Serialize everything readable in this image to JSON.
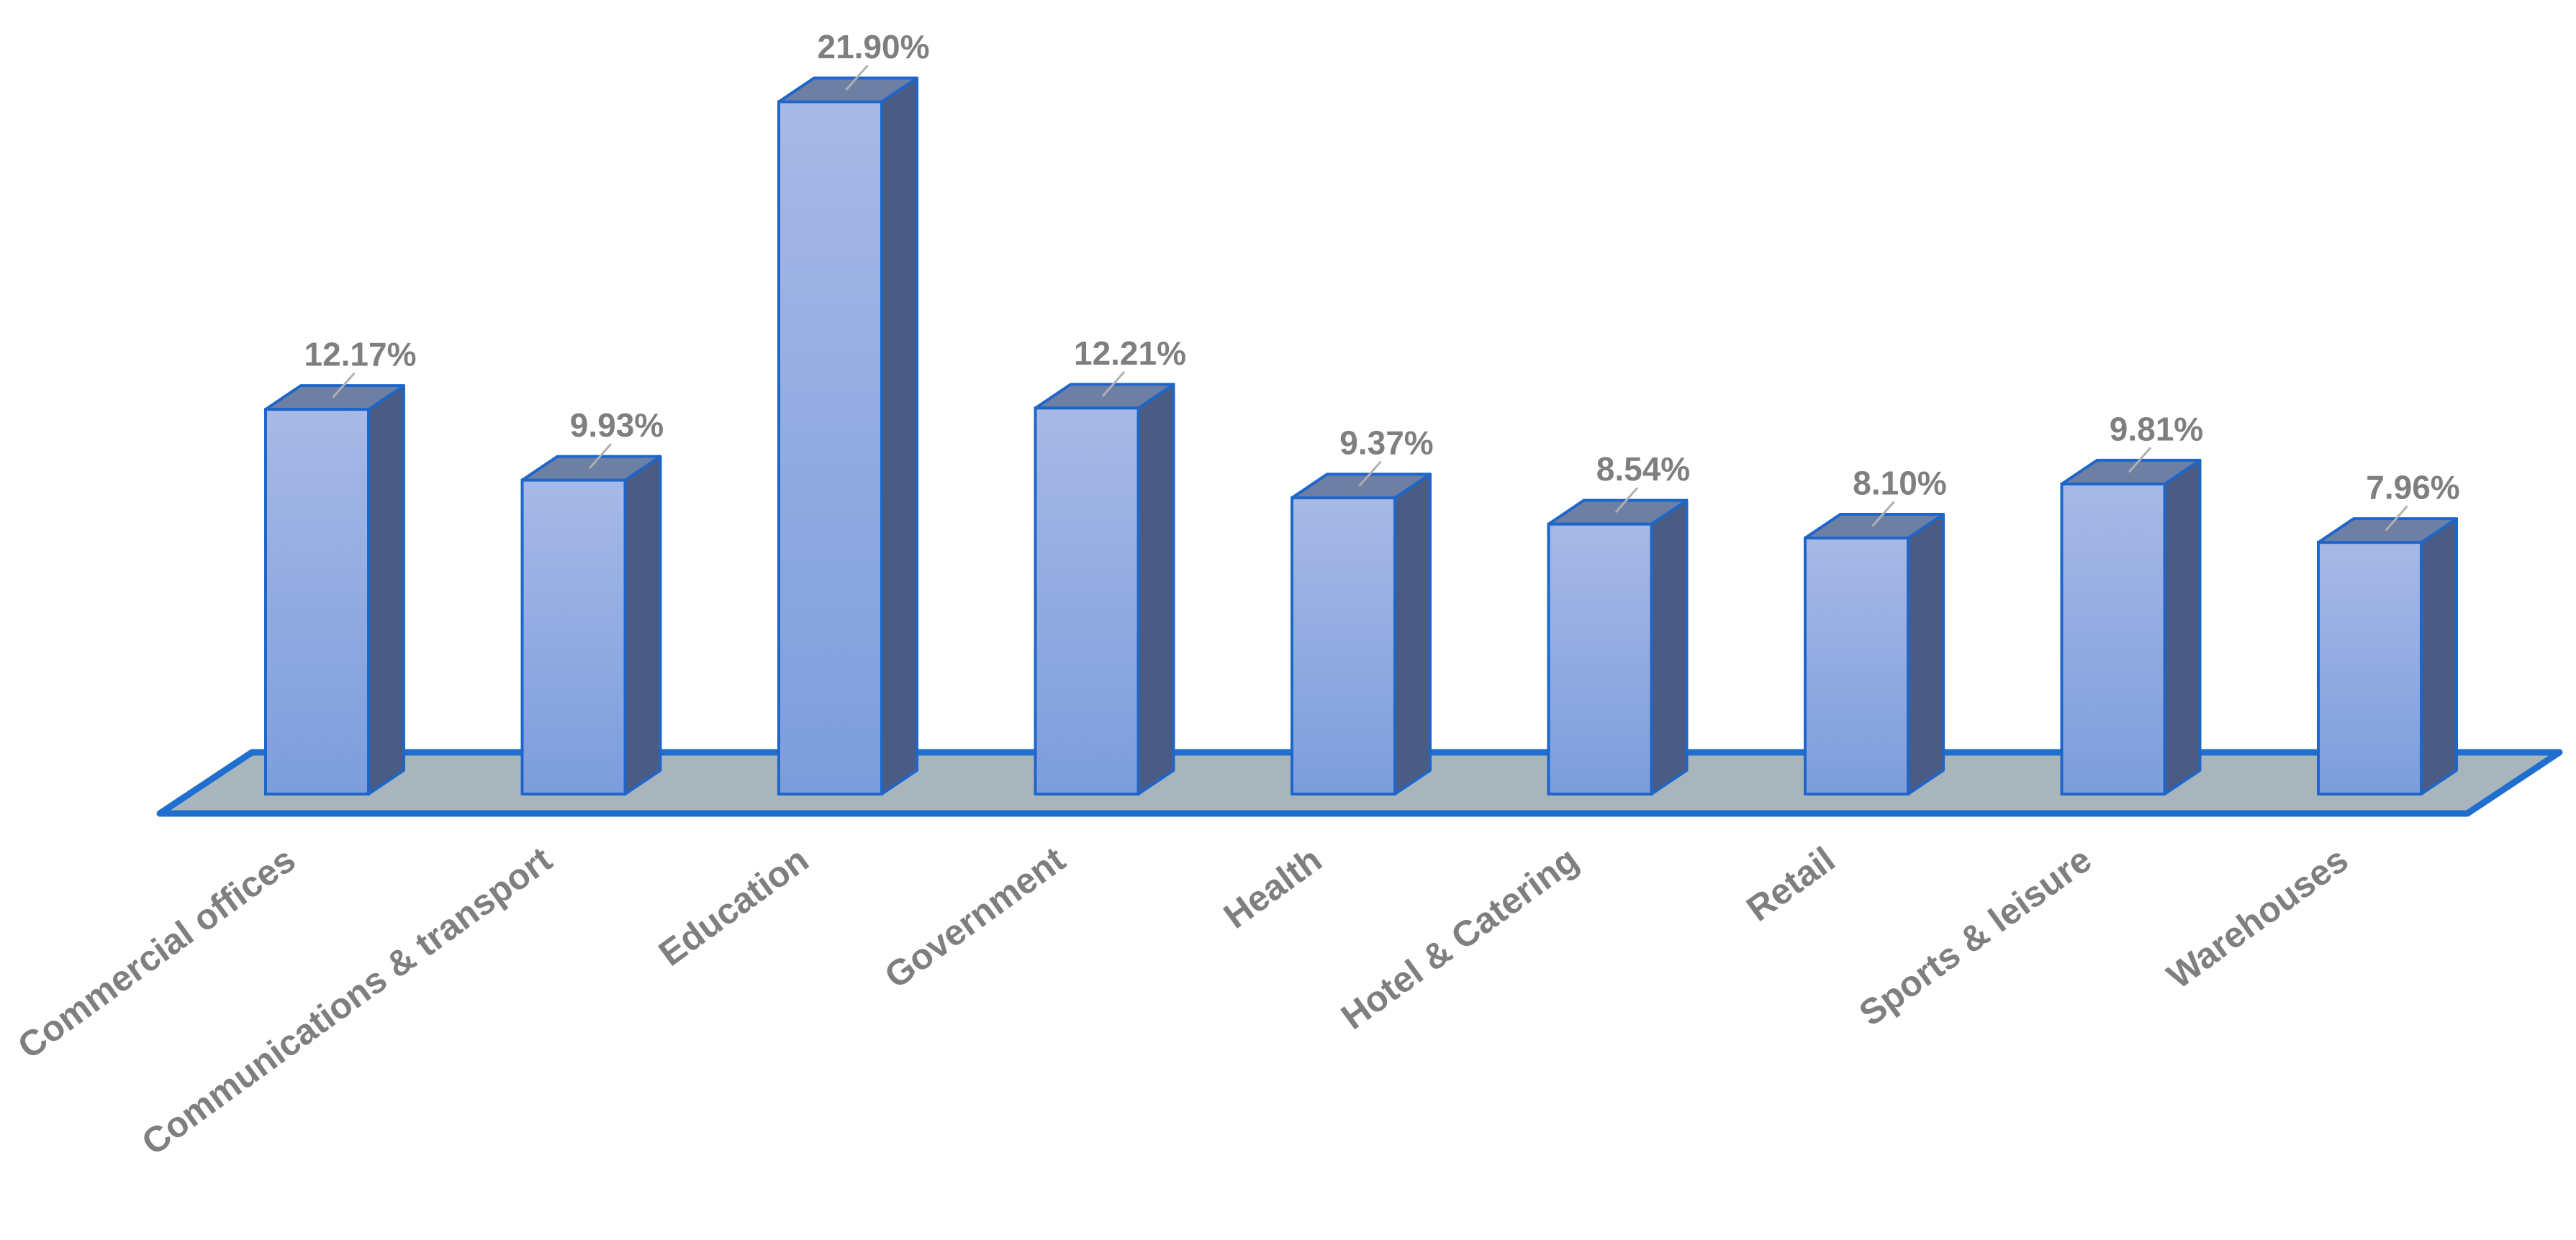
{
  "chart_data": {
    "type": "bar",
    "title": "",
    "xlabel": "",
    "ylabel": "",
    "categories": [
      "Commercial offices",
      "Communications & transport",
      "Education",
      "Government",
      "Health",
      "Hotel & Catering",
      "Retail",
      "Sports & leisure",
      "Warehouses"
    ],
    "values": [
      12.17,
      9.93,
      21.9,
      12.21,
      9.37,
      8.54,
      8.1,
      9.81,
      7.96
    ],
    "data_labels": [
      "12.17%",
      "9.93%",
      "21.90%",
      "12.21%",
      "9.37%",
      "8.54%",
      "8.10%",
      "9.81%",
      "7.96%"
    ],
    "ylim": [
      0,
      22
    ],
    "grid": false,
    "legend": "none",
    "style": "3d-column",
    "colors": {
      "bar_front_top": "#a7b9e6",
      "bar_front_bottom": "#7c9ddc",
      "bar_side": "#4a5c84",
      "bar_top": "#6e7fa4",
      "bar_outline": "#1f66c9",
      "floor": "#a8b5bd",
      "floor_outline": "#1f6fd0",
      "leader_line": "#b0b0b0",
      "label_text": "#7f7f7f"
    }
  }
}
